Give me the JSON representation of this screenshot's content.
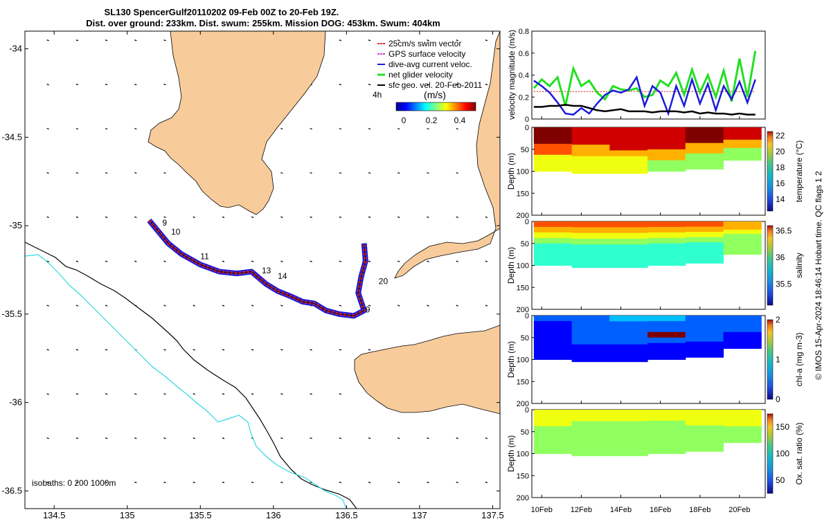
{
  "title": {
    "line1": "SL130 SpencerGulf20110202 09-Feb 00Z to 20-Feb 19Z.",
    "line2": "Dist. over ground: 233km. Dist. swum: 255km. Mission DOG: 453km. Swum: 404km"
  },
  "credit": "© IMOS 15-Apr-2024 18:46:14 Hobart time. QC flags 1  2",
  "colors": {
    "land": "#f8cb9b",
    "swim_vector": "#e0241c",
    "gps_velocity": "#d040d0",
    "dive_avg": "#1a1adc",
    "net_glider": "#22e022",
    "geostrophic": "#000000",
    "isobath_200": "#000000",
    "isobath_1000": "#30d8e0"
  },
  "chart_data": [
    {
      "type": "scatter",
      "panel": "map",
      "xlim": [
        134.3,
        137.55
      ],
      "ylim": [
        -36.6,
        -33.9
      ],
      "xticks": [
        134.5,
        135,
        135.5,
        136,
        136.5,
        137,
        137.5
      ],
      "xticklabels": [
        "134.5",
        "135",
        "135.5",
        "136",
        "136.5",
        "137",
        "137.5"
      ],
      "yticks": [
        -34,
        -34.5,
        -35,
        -35.5,
        -36,
        -36.5
      ],
      "yticklabels": [
        "-34",
        "-34.5",
        "-35",
        "-35.5",
        "-36",
        "-36.5"
      ],
      "legend": {
        "placement": "top-right",
        "entries": [
          "25cm/s swim vector",
          "GPS surface velocity",
          "dive-avg current veloc.",
          "net glider velocity",
          "sfc geo. vel. 20-Feb-2011"
        ],
        "time_label": "4h"
      },
      "colorbar": {
        "label": "(m/s)",
        "ticks": [
          "0",
          "0.2",
          "0.4"
        ],
        "range": [
          0,
          0.5
        ]
      },
      "isobath_label": "isobaths: 0   200  1000m",
      "track": {
        "lon": [
          135.15,
          135.2,
          135.28,
          135.37,
          135.5,
          135.63,
          135.75,
          135.85,
          135.95,
          136.03,
          136.12,
          136.2,
          136.28,
          136.36,
          136.45,
          136.55,
          136.62,
          136.58,
          136.6,
          136.63,
          136.62
        ],
        "lat": [
          -34.97,
          -35.02,
          -35.1,
          -35.16,
          -35.22,
          -35.26,
          -35.27,
          -35.26,
          -35.33,
          -35.37,
          -35.4,
          -35.43,
          -35.44,
          -35.48,
          -35.5,
          -35.51,
          -35.48,
          -35.38,
          -35.29,
          -35.2,
          -35.1
        ]
      },
      "day_labels": [
        {
          "text": "9",
          "lon": 135.24,
          "lat": -35.0
        },
        {
          "text": "10",
          "lon": 135.3,
          "lat": -35.05
        },
        {
          "text": "11",
          "lon": 135.5,
          "lat": -35.19
        },
        {
          "text": "13",
          "lon": 135.92,
          "lat": -35.27
        },
        {
          "text": "14",
          "lon": 136.03,
          "lat": -35.3
        },
        {
          "text": "20",
          "lon": 136.72,
          "lat": -35.33
        },
        {
          "text": "9",
          "lon": 136.63,
          "lat": -35.49
        }
      ]
    },
    {
      "type": "line",
      "panel": "velocity",
      "ylabel": "velocity magnitude (m/s)",
      "ylim": [
        0,
        0.8
      ],
      "yticks": [
        0,
        0.2,
        0.4,
        0.6,
        0.8
      ],
      "x": [
        9.6,
        10.0,
        10.4,
        10.8,
        11.2,
        11.6,
        12.0,
        12.4,
        12.8,
        13.2,
        13.6,
        14.0,
        14.4,
        14.8,
        15.2,
        15.6,
        16.0,
        16.4,
        16.8,
        17.2,
        17.6,
        18.0,
        18.4,
        18.8,
        19.2,
        19.6,
        20.0,
        20.4,
        20.8
      ],
      "series": [
        {
          "name": "dive-avg current veloc.",
          "color": "#1a1adc",
          "values": [
            0.35,
            0.3,
            0.24,
            0.15,
            0.05,
            0.04,
            0.1,
            0.05,
            0.14,
            0.22,
            0.26,
            0.24,
            0.27,
            0.38,
            0.12,
            0.3,
            0.24,
            0.05,
            0.3,
            0.12,
            0.36,
            0.14,
            0.32,
            0.08,
            0.3,
            0.18,
            0.34,
            0.15,
            0.36
          ]
        },
        {
          "name": "net glider velocity",
          "color": "#22e022",
          "values": [
            0.28,
            0.36,
            0.3,
            0.38,
            0.12,
            0.46,
            0.3,
            0.35,
            0.24,
            0.18,
            0.3,
            0.27,
            0.26,
            0.28,
            0.2,
            0.22,
            0.35,
            0.3,
            0.42,
            0.22,
            0.45,
            0.24,
            0.4,
            0.2,
            0.44,
            0.16,
            0.55,
            0.2,
            0.62
          ]
        },
        {
          "name": "geostrophic velocity",
          "color": "#000000",
          "values": [
            0.11,
            0.11,
            0.12,
            0.12,
            0.13,
            0.12,
            0.12,
            0.1,
            0.08,
            0.07,
            0.08,
            0.09,
            0.07,
            0.07,
            0.07,
            0.06,
            0.07,
            0.07,
            0.07,
            0.06,
            0.07,
            0.05,
            0.06,
            0.05,
            0.05,
            0.04,
            0.05,
            0.04,
            0.04
          ]
        }
      ],
      "reference_line": {
        "color": "#e0241c",
        "value": 0.25
      }
    },
    {
      "type": "heatmap",
      "panel": "temperature",
      "ylabel": "Depth (m)",
      "ylim": [
        0,
        200
      ],
      "yticks": [
        0,
        50,
        100,
        150,
        200
      ],
      "colorbar": {
        "label": "temperature (°C)",
        "range": [
          12.5,
          22.5
        ],
        "ticks": [
          14,
          16,
          18,
          20,
          22
        ]
      },
      "surface": [
        22,
        21,
        21.5,
        21,
        22,
        21
      ],
      "thermocline_depth": [
        50,
        50,
        55,
        60,
        45,
        35
      ],
      "bottom": [
        18,
        18,
        18,
        17.5,
        17,
        17
      ],
      "bottom_depth": [
        100,
        105,
        105,
        100,
        95,
        75
      ]
    },
    {
      "type": "heatmap",
      "panel": "salinity",
      "ylabel": "Depth (m)",
      "ylim": [
        0,
        200
      ],
      "yticks": [
        0,
        50,
        100,
        150,
        200
      ],
      "colorbar": {
        "label": "salinity",
        "range": [
          35.1,
          36.6
        ],
        "ticks": [
          35.5,
          36,
          36.5
        ]
      },
      "surface": [
        36.25,
        36.3,
        36.35,
        36.3,
        36.25,
        36.2
      ],
      "bottom": [
        35.75,
        35.75,
        35.7,
        35.7,
        35.75,
        35.8
      ],
      "bottom_depth": [
        100,
        105,
        105,
        100,
        95,
        75
      ]
    },
    {
      "type": "heatmap",
      "panel": "chlorophyll",
      "ylabel": "Depth (m)",
      "ylim": [
        0,
        200
      ],
      "yticks": [
        0,
        50,
        100,
        150,
        200
      ],
      "colorbar": {
        "label": "chl-a (mg m-3)",
        "range": [
          0,
          2
        ],
        "ticks": [
          0,
          1,
          2
        ]
      },
      "surface": [
        0.3,
        0.45,
        0.5,
        0.5,
        0.45,
        0.4
      ],
      "max_value": 1.9,
      "bottom_depth": [
        100,
        105,
        105,
        100,
        95,
        75
      ]
    },
    {
      "type": "heatmap",
      "panel": "oxygen",
      "ylabel": "Depth (m)",
      "ylim": [
        0,
        200
      ],
      "yticks": [
        0,
        50,
        100,
        150,
        200
      ],
      "colorbar": {
        "label": "Ox. sat. ratio (%)",
        "range": [
          25,
          175
        ],
        "ticks": [
          50,
          100,
          150
        ]
      },
      "surface": [
        115,
        112,
        110,
        112,
        115,
        118
      ],
      "bottom": [
        102,
        100,
        100,
        100,
        102,
        104
      ],
      "bottom_depth": [
        100,
        105,
        105,
        100,
        95,
        75
      ],
      "xlim": [
        9.5,
        21.3
      ],
      "xticks": [
        10,
        12,
        14,
        16,
        18,
        20
      ],
      "xticklabels": [
        "10Feb",
        "12Feb",
        "14Feb",
        "16Feb",
        "18Feb",
        "20Feb"
      ]
    }
  ]
}
